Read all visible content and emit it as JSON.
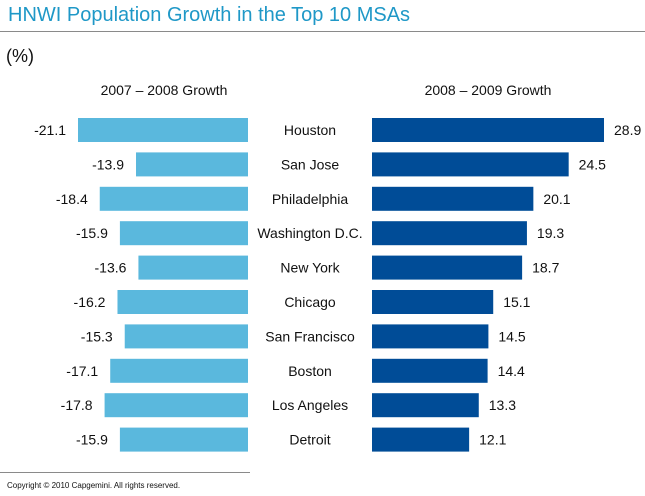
{
  "header": {
    "title": "HNWI Population Growth in the Top 10 MSAs",
    "unit": "(%)"
  },
  "footer": {
    "copyright": "Copyright © 2010 Capgemini. All rights reserved."
  },
  "colors": {
    "title": "#1f98c7",
    "left_bars": "#5ab8dd",
    "right_bars": "#004c97"
  },
  "chart_data": {
    "type": "bar",
    "orientation": "horizontal",
    "layout": "back-to-back",
    "categories": [
      "Houston",
      "San Jose",
      "Philadelphia",
      "Washington D.C.",
      "New York",
      "Chicago",
      "San Francisco",
      "Boston",
      "Los Angeles",
      "Detroit"
    ],
    "series": [
      {
        "name": "2007 – 2008 Growth",
        "values": [
          -21.1,
          -13.9,
          -18.4,
          -15.9,
          -13.6,
          -16.2,
          -15.3,
          -17.1,
          -17.8,
          -15.9
        ],
        "labels": [
          "-21.1",
          "-13.9",
          "-18.4",
          "-15.9",
          "-13.6",
          "-16.2",
          "-15.3",
          "-17.1",
          "-17.8",
          "-15.9"
        ],
        "color": "#5ab8dd"
      },
      {
        "name": "2008 – 2009 Growth",
        "values": [
          28.9,
          24.5,
          20.1,
          19.3,
          18.7,
          15.1,
          14.5,
          14.4,
          13.3,
          12.1
        ],
        "labels": [
          "28.9",
          "24.5",
          "20.1",
          "19.3",
          "18.7",
          "15.1",
          "14.5",
          "14.4",
          "13.3",
          "12.1"
        ],
        "color": "#004c97"
      }
    ],
    "ylabel": "(%)",
    "grid": false,
    "data_labels": true
  }
}
